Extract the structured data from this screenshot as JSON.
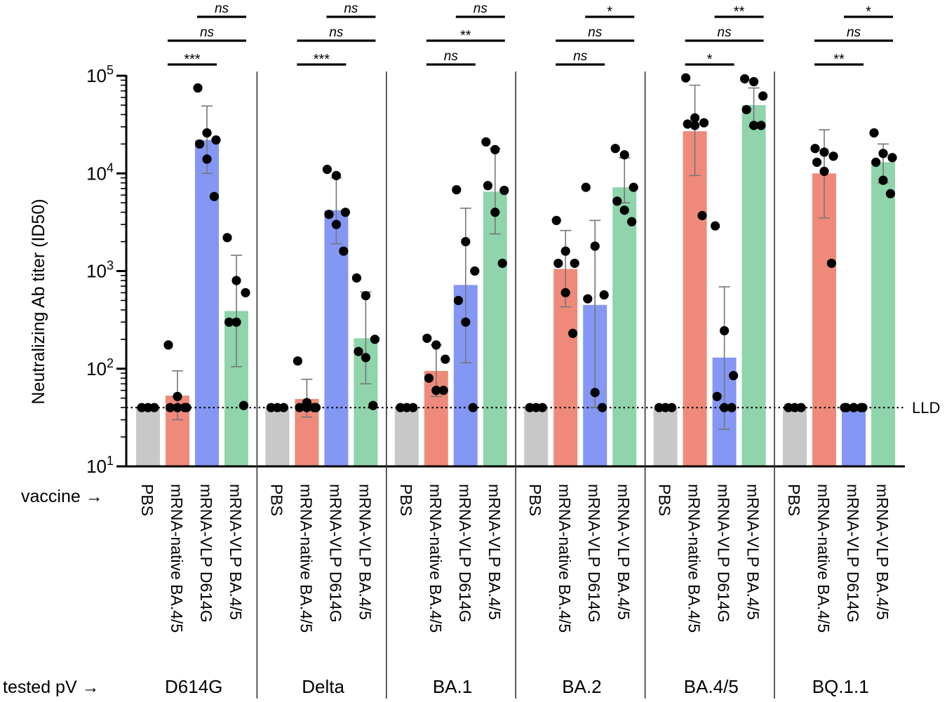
{
  "chart_data": {
    "type": "bar",
    "title": "",
    "ylabel": "Neutralizing Ab titer (ID50)",
    "yscale": "log",
    "ylim": [
      10,
      100000
    ],
    "yticks": [
      {
        "value": 10,
        "base": "10",
        "exp": "1"
      },
      {
        "value": 100,
        "base": "10",
        "exp": "2"
      },
      {
        "value": 1000,
        "base": "10",
        "exp": "3"
      },
      {
        "value": 10000,
        "base": "10",
        "exp": "4"
      },
      {
        "value": 100000,
        "base": "10",
        "exp": "5"
      }
    ],
    "lld": {
      "value": 40,
      "label": "LLD"
    },
    "row_labels": {
      "vaccine": "vaccine →",
      "tested": "tested pV →"
    },
    "vaccines": [
      {
        "name": "PBS",
        "color": "#c8c8c8"
      },
      {
        "name": "mRNA-native BA.4/5",
        "color": "#ef8a7a"
      },
      {
        "name": "mRNA-VLP D614G",
        "color": "#8497f5"
      },
      {
        "name": "mRNA-VLP BA.4/5",
        "color": "#8fd4ab"
      }
    ],
    "groups": [
      {
        "name": "D614G",
        "bars": [
          {
            "mean": 40,
            "err": [
              40,
              40
            ],
            "points": [
              40,
              40,
              40
            ]
          },
          {
            "mean": 53,
            "err": [
              30,
              95
            ],
            "points": [
              175,
              52,
              40,
              40,
              40,
              40
            ]
          },
          {
            "mean": 22000,
            "err": [
              10000,
              49000
            ],
            "points": [
              75000,
              26000,
              22000,
              20000,
              14000,
              5800
            ]
          },
          {
            "mean": 390,
            "err": [
              105,
              1450
            ],
            "points": [
              2200,
              800,
              600,
              300,
              300,
              42
            ]
          }
        ],
        "sig": [
          {
            "pair": [
              1,
              2
            ],
            "label": "***"
          },
          {
            "pair": [
              1,
              3
            ],
            "label": "ns"
          },
          {
            "pair": [
              2,
              3
            ],
            "label": "ns"
          }
        ]
      },
      {
        "name": "Delta",
        "bars": [
          {
            "mean": 40,
            "err": [
              40,
              40
            ],
            "points": [
              40,
              40,
              40
            ]
          },
          {
            "mean": 49,
            "err": [
              32,
              78
            ],
            "points": [
              120,
              45,
              40,
              40,
              40,
              40
            ]
          },
          {
            "mean": 4200,
            "err": [
              1900,
              9000
            ],
            "points": [
              11000,
              9500,
              4000,
              3800,
              3000,
              1600
            ]
          },
          {
            "mean": 205,
            "err": [
              70,
              610
            ],
            "points": [
              850,
              560,
              200,
              150,
              130,
              42
            ]
          }
        ],
        "sig": [
          {
            "pair": [
              1,
              2
            ],
            "label": "***"
          },
          {
            "pair": [
              1,
              3
            ],
            "label": "ns"
          },
          {
            "pair": [
              2,
              3
            ],
            "label": "ns"
          }
        ]
      },
      {
        "name": "BA.1",
        "bars": [
          {
            "mean": 40,
            "err": [
              40,
              40
            ],
            "points": [
              40,
              40,
              40
            ]
          },
          {
            "mean": 95,
            "err": [
              52,
              175
            ],
            "points": [
              205,
              175,
              125,
              80,
              60,
              60
            ]
          },
          {
            "mean": 720,
            "err": [
              115,
              4400
            ],
            "points": [
              6800,
              2000,
              1000,
              500,
              300,
              40
            ]
          },
          {
            "mean": 6500,
            "err": [
              2400,
              18000
            ],
            "points": [
              21000,
              17500,
              6700,
              7500,
              4000,
              1200
            ]
          }
        ],
        "sig": [
          {
            "pair": [
              1,
              2
            ],
            "label": "ns"
          },
          {
            "pair": [
              1,
              3
            ],
            "label": "**"
          },
          {
            "pair": [
              2,
              3
            ],
            "label": "ns"
          }
        ]
      },
      {
        "name": "BA.2",
        "bars": [
          {
            "mean": 40,
            "err": [
              40,
              40
            ],
            "points": [
              40,
              40,
              40
            ]
          },
          {
            "mean": 1050,
            "err": [
              430,
              2600
            ],
            "points": [
              3300,
              1600,
              1200,
              1200,
              600,
              230
            ]
          },
          {
            "mean": 450,
            "err": [
              40,
              3300
            ],
            "points": [
              7200,
              1800,
              570,
              520,
              57,
              40
            ]
          },
          {
            "mean": 7200,
            "err": [
              5000,
              14500
            ],
            "points": [
              18000,
              15500,
              7200,
              5200,
              4200,
              3200
            ]
          }
        ],
        "sig": [
          {
            "pair": [
              1,
              2
            ],
            "label": "ns"
          },
          {
            "pair": [
              1,
              3
            ],
            "label": "ns"
          },
          {
            "pair": [
              2,
              3
            ],
            "label": "*"
          }
        ]
      },
      {
        "name": "BA.4/5",
        "bars": [
          {
            "mean": 40,
            "err": [
              40,
              40
            ],
            "points": [
              40,
              40,
              40
            ]
          },
          {
            "mean": 27000,
            "err": [
              9500,
              80000
            ],
            "points": [
              95000,
              37000,
              33000,
              32000,
              31000,
              3700
            ]
          },
          {
            "mean": 130,
            "err": [
              24,
              690
            ],
            "points": [
              2900,
              245,
              85,
              52,
              40,
              40
            ]
          },
          {
            "mean": 50000,
            "err": [
              30000,
              75000
            ],
            "points": [
              93000,
              87000,
              62000,
              45000,
              31000,
              31000
            ]
          }
        ],
        "sig": [
          {
            "pair": [
              1,
              2
            ],
            "label": "*"
          },
          {
            "pair": [
              1,
              3
            ],
            "label": "ns"
          },
          {
            "pair": [
              2,
              3
            ],
            "label": "**"
          }
        ]
      },
      {
        "name": "BQ.1.1",
        "bars": [
          {
            "mean": 40,
            "err": [
              40,
              40
            ],
            "points": [
              40,
              40,
              40
            ]
          },
          {
            "mean": 10000,
            "err": [
              3500,
              28000
            ],
            "points": [
              18000,
              16500,
              15000,
              13000,
              10500,
              1200
            ]
          },
          {
            "mean": 40,
            "err": [
              40,
              40
            ],
            "points": [
              40,
              40,
              40,
              40,
              40,
              40
            ]
          },
          {
            "mean": 13000,
            "err": [
              8000,
              20000
            ],
            "points": [
              26000,
              16000,
              14500,
              13000,
              8500,
              6200
            ]
          }
        ],
        "sig": [
          {
            "pair": [
              1,
              2
            ],
            "label": "**"
          },
          {
            "pair": [
              1,
              3
            ],
            "label": "ns"
          },
          {
            "pair": [
              2,
              3
            ],
            "label": "*"
          }
        ]
      }
    ]
  }
}
